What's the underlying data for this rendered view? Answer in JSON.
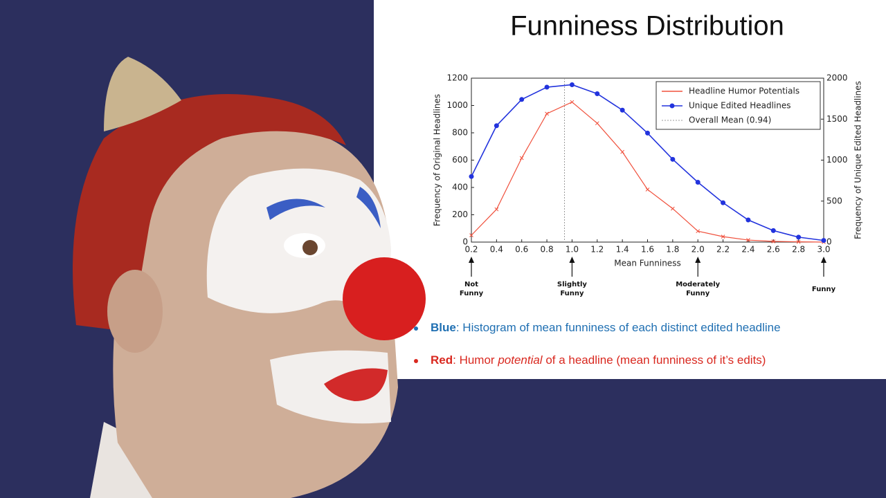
{
  "slide": {
    "title": "Funniness Distribution",
    "bullets": [
      {
        "color": "#1f6fb2",
        "parts": [
          {
            "text": "Blue",
            "bold": true
          },
          {
            "text": ": Histogram of mean funniness of each distinct edited headline"
          }
        ]
      },
      {
        "color": "#d9281f",
        "parts": [
          {
            "text": "Red",
            "bold": true
          },
          {
            "text": ": Humor "
          },
          {
            "text": "potential",
            "italic": true
          },
          {
            "text": " of a headline (mean funniness of it’s edits)"
          }
        ]
      }
    ]
  },
  "chart_data": {
    "type": "line",
    "x": [
      0.2,
      0.4,
      0.6,
      0.8,
      1.0,
      1.2,
      1.4,
      1.6,
      1.8,
      2.0,
      2.2,
      2.4,
      2.6,
      2.8,
      3.0
    ],
    "series": [
      {
        "name": "Headline Humor Potentials",
        "color": "#f0503c",
        "marker": "x",
        "values": [
          50,
          240,
          615,
          940,
          1025,
          870,
          660,
          385,
          245,
          80,
          40,
          15,
          5,
          2,
          0
        ]
      },
      {
        "name": "Unique Edited Headlines",
        "color": "#2233dd",
        "marker": "o",
        "axis": "y2",
        "values": [
          800,
          1420,
          1740,
          1890,
          1920,
          1810,
          1610,
          1330,
          1010,
          730,
          480,
          270,
          140,
          60,
          20
        ]
      }
    ],
    "mean": {
      "name": "Overall Mean (0.94)",
      "value": 0.94,
      "color": "#999999"
    },
    "xlabel": "Mean Funniness",
    "ylabel": "Frequency of Original Headlines",
    "y2label": "Frequency of Unique Edited Headlines",
    "xlim": [
      0.2,
      3.0
    ],
    "xticks": [
      0.2,
      0.4,
      0.6,
      0.8,
      {
        "value": 1,
        "label": "1.0"
      },
      1.2,
      1.4,
      1.6,
      1.8,
      {
        "value": 2,
        "label": "2.0"
      },
      2.2,
      2.4,
      2.6,
      2.8,
      {
        "value": 3,
        "label": "3.0"
      }
    ],
    "ylim": [
      0,
      1200
    ],
    "yticks": [
      0,
      200,
      400,
      600,
      800,
      1000,
      1200
    ],
    "y2lim": [
      0,
      2000
    ],
    "y2ticks": [
      0,
      500,
      1000,
      1500,
      2000
    ],
    "legend": "upper right",
    "annotations": [
      {
        "x": 0.2,
        "text": "Not Funny"
      },
      {
        "x": 1,
        "text": "Slightly Funny"
      },
      {
        "x": 2,
        "text": "Moderately Funny"
      },
      {
        "x": 3,
        "text": "Funny"
      }
    ]
  }
}
